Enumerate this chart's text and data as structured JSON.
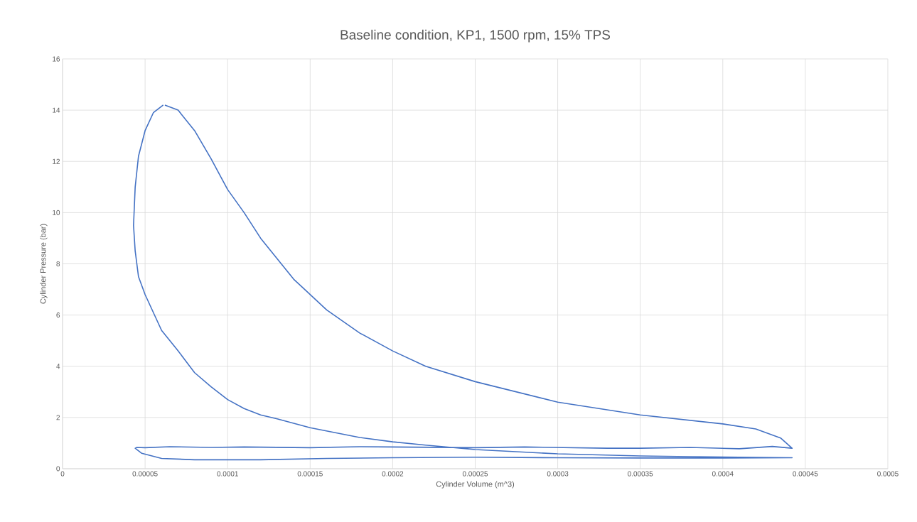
{
  "chart_data": {
    "type": "line",
    "title": "Baseline condition, KP1, 1500 rpm, 15% TPS",
    "xlabel": "Cylinder Volume (m^3)",
    "ylabel": "Cylinder Pressure  (bar)",
    "x": [
      6.2e-05,
      7e-05,
      8e-05,
      9e-05,
      0.0001,
      0.00011,
      0.00012,
      0.00013,
      0.00014,
      0.000145,
      0.00016,
      0.00018,
      0.0002,
      0.00022,
      0.00025,
      0.0003,
      0.00035,
      0.0004,
      0.00042,
      0.000435,
      0.000442,
      0.00043,
      0.00041,
      0.00038,
      0.00035,
      0.00033,
      0.00028,
      0.00025,
      0.0002,
      0.00018,
      0.00015,
      0.00011,
      9e-05,
      6.5e-05,
      5e-05,
      4.5e-05,
      4.4e-05,
      4.8e-05,
      6e-05,
      8e-05,
      0.00012,
      0.00016,
      0.0002,
      0.00025,
      0.0003,
      0.00035,
      0.0004,
      0.000442,
      0.00042,
      0.00038,
      0.00035,
      0.0003,
      0.00025,
      0.00022,
      0.0002,
      0.00018,
      0.00015,
      0.00013,
      0.00012,
      0.00011,
      0.0001,
      9e-05,
      8e-05,
      7e-05,
      6e-05,
      5e-05,
      4.6e-05,
      4.4e-05,
      4.3e-05,
      4.4e-05,
      4.6e-05,
      5e-05,
      5.5e-05,
      6.1e-05
    ],
    "series": [
      {
        "color": "#4472c4",
        "values": [
          14.2,
          14.0,
          13.2,
          12.1,
          10.9,
          10.0,
          9.0,
          8.2,
          7.4,
          7.1,
          6.2,
          5.3,
          4.6,
          4.0,
          3.4,
          2.6,
          2.1,
          1.75,
          1.55,
          1.2,
          0.8,
          0.87,
          0.78,
          0.83,
          0.8,
          0.8,
          0.85,
          0.82,
          0.85,
          0.86,
          0.82,
          0.85,
          0.83,
          0.86,
          0.82,
          0.83,
          0.8,
          0.6,
          0.4,
          0.35,
          0.35,
          0.4,
          0.43,
          0.45,
          0.43,
          0.42,
          0.42,
          0.43,
          0.44,
          0.47,
          0.5,
          0.58,
          0.75,
          0.92,
          1.05,
          1.22,
          1.6,
          1.95,
          2.1,
          2.35,
          2.7,
          3.2,
          3.75,
          4.6,
          5.4,
          6.8,
          7.5,
          8.5,
          9.5,
          11,
          12.2,
          13.2,
          13.9,
          14.2
        ]
      }
    ],
    "xlim": [
      0,
      0.0005
    ],
    "ylim": [
      0,
      16
    ],
    "xticks": [
      0,
      {
        "value": 5e-05,
        "label": "0.00005"
      },
      {
        "value": 0.0001,
        "label": "0.0001"
      },
      {
        "value": 0.00015,
        "label": "0.00015"
      },
      {
        "value": 0.0002,
        "label": "0.0002"
      },
      {
        "value": 0.00025,
        "label": "0.00025"
      },
      {
        "value": 0.0003,
        "label": "0.0003"
      },
      {
        "value": 0.00035,
        "label": "0.00035"
      },
      {
        "value": 0.0004,
        "label": "0.0004"
      },
      {
        "value": 0.00045,
        "label": "0.00045"
      },
      {
        "value": 0.0005,
        "label": "0.0005"
      }
    ],
    "yticks": [
      0,
      2,
      4,
      6,
      8,
      10,
      12,
      14,
      16
    ],
    "grid": true,
    "marker": "none",
    "line_style": "solid"
  }
}
